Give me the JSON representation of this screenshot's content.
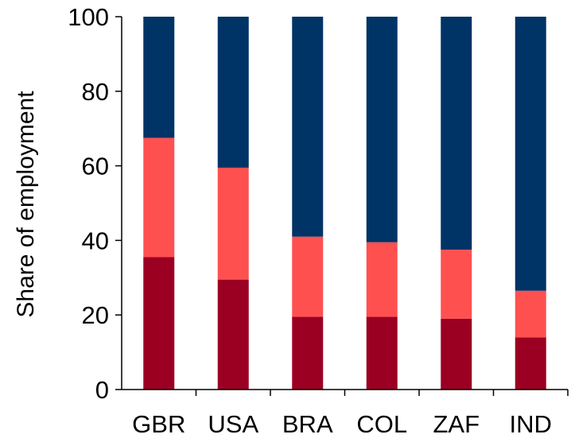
{
  "chart_data": {
    "type": "bar",
    "stacked": true,
    "categories": [
      "GBR",
      "USA",
      "BRA",
      "COL",
      "ZAF",
      "IND"
    ],
    "series": [
      {
        "values": [
          35.5,
          29.5,
          19.5,
          19.5,
          19.0,
          14.0
        ],
        "color": "#9b0023"
      },
      {
        "values": [
          32.0,
          30.0,
          21.5,
          20.0,
          18.5,
          12.5
        ],
        "color": "#ff5050"
      },
      {
        "values": [
          32.5,
          40.5,
          59.0,
          60.5,
          62.5,
          73.5
        ],
        "color": "#003366"
      }
    ],
    "title": "",
    "xlabel": "",
    "ylabel": "Share of employment",
    "ylim": [
      0,
      100
    ],
    "yticks": [
      0,
      20,
      40,
      60,
      80,
      100
    ],
    "grid": false,
    "legend": "none"
  }
}
